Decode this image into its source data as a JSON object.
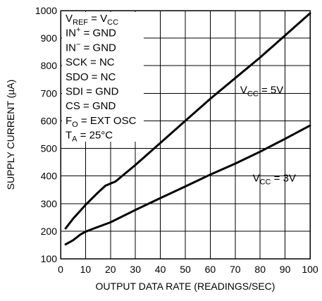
{
  "chart_data": {
    "type": "line",
    "title": "",
    "xlabel": "OUTPUT DATA RATE (READINGS/SEC)",
    "ylabel": "SUPPLY CURRENT (µA)",
    "xlim": [
      0,
      100
    ],
    "ylim": [
      100,
      1000
    ],
    "x_ticks": [
      0,
      10,
      20,
      30,
      40,
      50,
      60,
      70,
      80,
      90,
      100
    ],
    "y_ticks": [
      100,
      200,
      300,
      400,
      500,
      600,
      700,
      800,
      900,
      1000
    ],
    "grid": true,
    "series": [
      {
        "name": "V_CC = 5V",
        "label": {
          "base": "V",
          "sub": "CC",
          "suffix": " = 5V"
        },
        "x": [
          2,
          5,
          10,
          15,
          18,
          22,
          30,
          40,
          50,
          60,
          70,
          80,
          90,
          100
        ],
        "y": [
          210,
          245,
          295,
          340,
          365,
          380,
          440,
          520,
          600,
          680,
          755,
          830,
          910,
          990
        ]
      },
      {
        "name": "V_CC = 3V",
        "label": {
          "base": "V",
          "sub": "CC",
          "suffix": " = 3V"
        },
        "x": [
          2,
          5,
          8,
          10,
          12,
          20,
          30,
          40,
          50,
          60,
          70,
          80,
          90,
          100
        ],
        "y": [
          152,
          167,
          188,
          198,
          205,
          232,
          277,
          320,
          362,
          405,
          445,
          488,
          535,
          583
        ]
      }
    ],
    "conditions": [
      {
        "base": "V",
        "sub": "REF",
        "sup": "",
        "suffix": " = V",
        "sub2": "CC"
      },
      {
        "base": "IN",
        "sub": "",
        "sup": "+",
        "suffix": " = GND",
        "sub2": ""
      },
      {
        "base": "IN",
        "sub": "",
        "sup": "−",
        "suffix": " = GND",
        "sub2": ""
      },
      {
        "base": "SCK",
        "sub": "",
        "sup": "",
        "suffix": " = NC",
        "sub2": ""
      },
      {
        "base": "SDO",
        "sub": "",
        "sup": "",
        "suffix": " = NC",
        "sub2": ""
      },
      {
        "base": "SDI",
        "sub": "",
        "sup": "",
        "suffix": " = GND",
        "sub2": ""
      },
      {
        "base": "CS",
        "sub": "",
        "sup": "",
        "suffix": " = GND",
        "sub2": ""
      },
      {
        "base": "F",
        "sub": "O",
        "sup": "",
        "suffix": " = EXT OSC",
        "sub2": ""
      },
      {
        "base": "T",
        "sub": "A",
        "sup": "",
        "suffix": " = 25°C",
        "sub2": ""
      }
    ]
  }
}
